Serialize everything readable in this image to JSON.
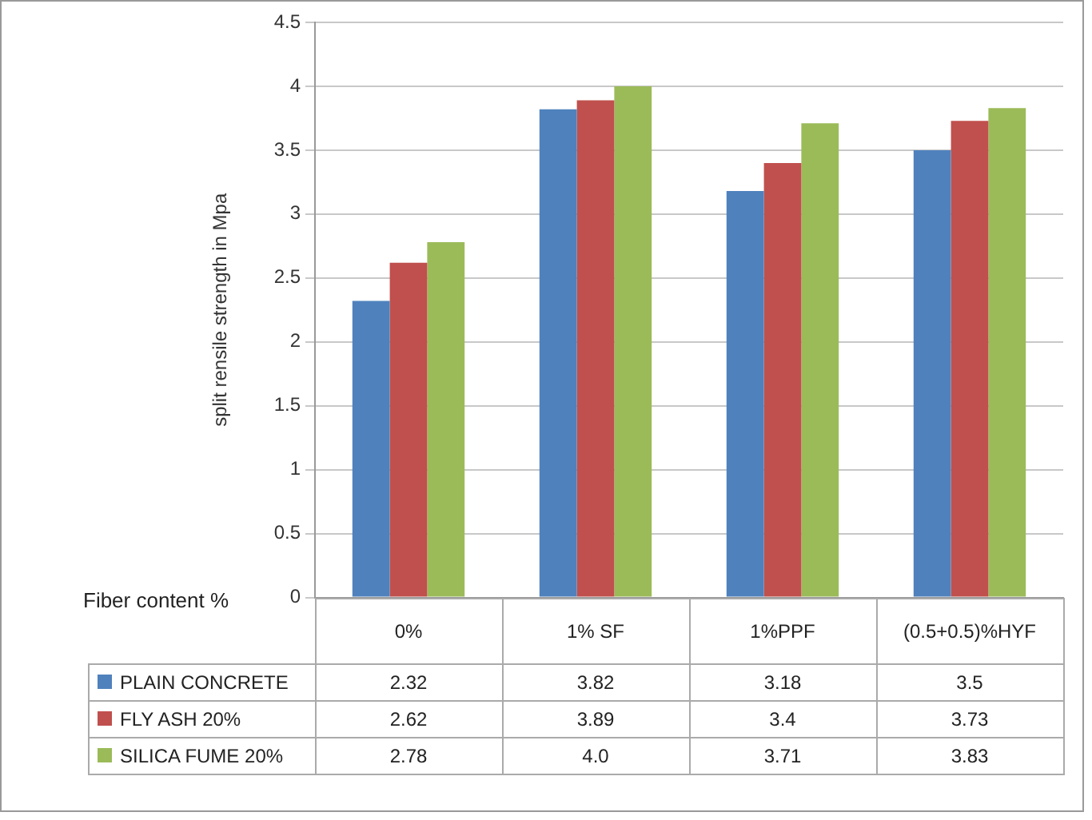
{
  "chart_data": {
    "type": "bar",
    "xlabel": "Fiber content %",
    "ylabel": "split rensile strength in Mpa",
    "categories": [
      "0%",
      "1% SF",
      "1%PPF",
      "(0.5+0.5)%HYF"
    ],
    "series": [
      {
        "name": "PLAIN CONCRETE",
        "color": "#4f81bd",
        "values": [
          2.32,
          3.82,
          3.18,
          3.5
        ],
        "value_labels": [
          "2.32",
          "3.82",
          "3.18",
          "3.5"
        ]
      },
      {
        "name": "FLY ASH 20%",
        "color": "#c0504d",
        "values": [
          2.62,
          3.89,
          3.4,
          3.73
        ],
        "value_labels": [
          "2.62",
          "3.89",
          "3.4",
          "3.73"
        ]
      },
      {
        "name": "SILICA FUME 20%",
        "color": "#9bbb59",
        "values": [
          2.78,
          4.0,
          3.71,
          3.83
        ],
        "value_labels": [
          "2.78",
          "4.0",
          "3.71",
          "3.83"
        ]
      }
    ],
    "ylim": [
      0,
      4.5
    ],
    "yticks": [
      0,
      0.5,
      1,
      1.5,
      2,
      2.5,
      3,
      3.5,
      4,
      4.5
    ],
    "grid": "y",
    "legend": "bottom"
  }
}
